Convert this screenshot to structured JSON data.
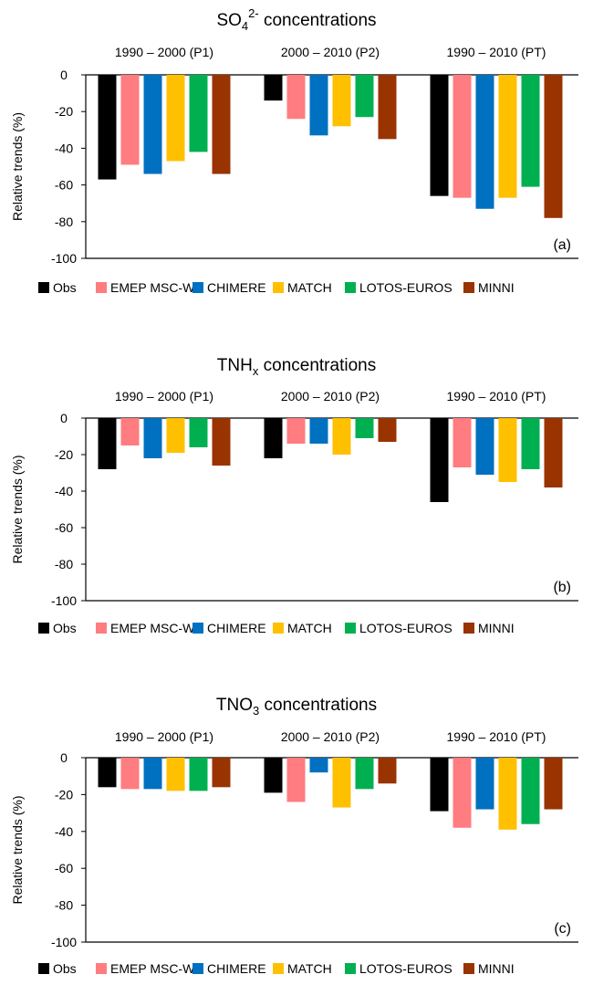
{
  "chart_data": [
    {
      "type": "bar",
      "title_main": "SO",
      "title_sub": "4",
      "title_sup": "2-",
      "title_rest": " concentrations",
      "ylabel": "Relative trends (%)",
      "panel_label": "(a)",
      "ylim": [
        -100,
        0
      ],
      "yticks": [
        "0",
        "-20",
        "-40",
        "-60",
        "-80",
        "-100"
      ],
      "categories": [
        "1990 – 2000 (P1)",
        "2000 – 2010 (P2)",
        "1990 – 2010 (PT)"
      ],
      "series": [
        {
          "name": "Obs",
          "color": "#000000",
          "values": [
            -57,
            -14,
            -66
          ]
        },
        {
          "name": "EMEP MSC-W",
          "color": "#ff7c80",
          "values": [
            -49,
            -24,
            -67
          ]
        },
        {
          "name": "CHIMERE",
          "color": "#0070c0",
          "values": [
            -54,
            -33,
            -73
          ]
        },
        {
          "name": "MATCH",
          "color": "#ffc000",
          "values": [
            -47,
            -28,
            -67
          ]
        },
        {
          "name": "LOTOS-EUROS",
          "color": "#00b050",
          "values": [
            -42,
            -23,
            -61
          ]
        },
        {
          "name": "MINNI",
          "color": "#993300",
          "values": [
            -54,
            -35,
            -78
          ]
        }
      ],
      "legend": "bottom",
      "grid": false
    },
    {
      "type": "bar",
      "title_main": "TNH",
      "title_sub": "x",
      "title_sup": "",
      "title_rest": " concentrations",
      "ylabel": "Relative trends (%)",
      "panel_label": "(b)",
      "ylim": [
        -100,
        0
      ],
      "yticks": [
        "0",
        "-20",
        "-40",
        "-60",
        "-80",
        "-100"
      ],
      "categories": [
        "1990 – 2000 (P1)",
        "2000 – 2010 (P2)",
        "1990 – 2010 (PT)"
      ],
      "series": [
        {
          "name": "Obs",
          "color": "#000000",
          "values": [
            -28,
            -22,
            -46
          ]
        },
        {
          "name": "EMEP MSC-W",
          "color": "#ff7c80",
          "values": [
            -15,
            -14,
            -27
          ]
        },
        {
          "name": "CHIMERE",
          "color": "#0070c0",
          "values": [
            -22,
            -14,
            -31
          ]
        },
        {
          "name": "MATCH",
          "color": "#ffc000",
          "values": [
            -19,
            -20,
            -35
          ]
        },
        {
          "name": "LOTOS-EUROS",
          "color": "#00b050",
          "values": [
            -16,
            -11,
            -28
          ]
        },
        {
          "name": "MINNI",
          "color": "#993300",
          "values": [
            -26,
            -13,
            -38
          ]
        }
      ],
      "legend": "bottom",
      "grid": false
    },
    {
      "type": "bar",
      "title_main": "TNO",
      "title_sub": "3",
      "title_sup": "",
      "title_rest": " concentrations",
      "ylabel": "Relative trends (%)",
      "panel_label": "(c)",
      "ylim": [
        -100,
        0
      ],
      "yticks": [
        "0",
        "-20",
        "-40",
        "-60",
        "-80",
        "-100"
      ],
      "categories": [
        "1990 – 2000 (P1)",
        "2000 – 2010 (P2)",
        "1990 – 2010 (PT)"
      ],
      "series": [
        {
          "name": "Obs",
          "color": "#000000",
          "values": [
            -16,
            -19,
            -29
          ]
        },
        {
          "name": "EMEP MSC-W",
          "color": "#ff7c80",
          "values": [
            -17,
            -24,
            -38
          ]
        },
        {
          "name": "CHIMERE",
          "color": "#0070c0",
          "values": [
            -17,
            -8,
            -28
          ]
        },
        {
          "name": "MATCH",
          "color": "#ffc000",
          "values": [
            -18,
            -27,
            -39
          ]
        },
        {
          "name": "LOTOS-EUROS",
          "color": "#00b050",
          "values": [
            -18,
            -17,
            -36
          ]
        },
        {
          "name": "MINNI",
          "color": "#993300",
          "values": [
            -16,
            -14,
            -28
          ]
        }
      ],
      "legend": "bottom",
      "grid": false
    }
  ]
}
